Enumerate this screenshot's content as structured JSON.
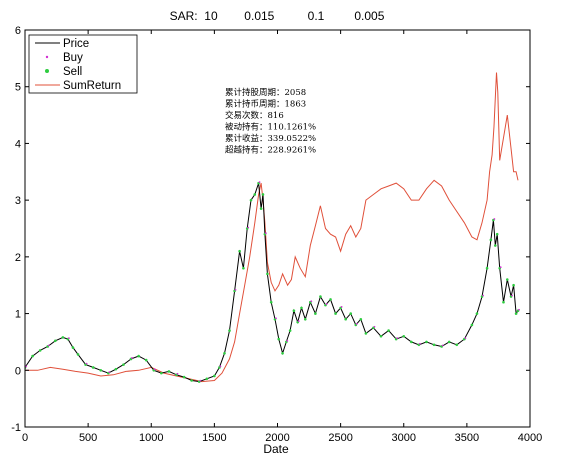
{
  "chart_data": {
    "type": "line",
    "title": "SAR:  10        0.015          0.1         0.005",
    "xlabel": "Date",
    "ylabel": "",
    "xlim": [
      0,
      4000
    ],
    "ylim": [
      -1,
      6
    ],
    "x_ticks": [
      0,
      500,
      1000,
      1500,
      2000,
      2500,
      3000,
      3500,
      4000
    ],
    "y_ticks": [
      -1,
      0,
      1,
      2,
      3,
      4,
      5,
      6
    ],
    "grid": false,
    "legend_position": "top-left",
    "legend": [
      "Price",
      "Buy",
      "Sell",
      "SumReturn"
    ],
    "colors": {
      "price": "#000000",
      "buy": "#d22fd2",
      "sell": "#2ecc40",
      "sumreturn": "#e0503a"
    },
    "stats": [
      "累计持股周期：2058",
      "累计持币周期：1863",
      "交易次数：816",
      "被动持有：110.1261%",
      "累计收益：339.0522%",
      "超越持有：228.9261%"
    ],
    "series": [
      {
        "name": "Price",
        "x": [
          0,
          60,
          120,
          180,
          240,
          300,
          340,
          380,
          420,
          480,
          540,
          600,
          660,
          720,
          780,
          840,
          900,
          960,
          1020,
          1080,
          1140,
          1200,
          1260,
          1320,
          1380,
          1440,
          1500,
          1540,
          1580,
          1620,
          1660,
          1700,
          1730,
          1760,
          1790,
          1820,
          1850,
          1870,
          1885,
          1900,
          1920,
          1950,
          1980,
          2010,
          2040,
          2070,
          2100,
          2130,
          2160,
          2190,
          2220,
          2260,
          2300,
          2340,
          2380,
          2420,
          2460,
          2500,
          2540,
          2580,
          2620,
          2660,
          2700,
          2760,
          2820,
          2880,
          2940,
          3000,
          3060,
          3120,
          3180,
          3240,
          3300,
          3360,
          3420,
          3480,
          3540,
          3580,
          3620,
          3660,
          3690,
          3710,
          3725,
          3740,
          3760,
          3790,
          3820,
          3850,
          3870,
          3890,
          3905
        ],
        "y": [
          0.05,
          0.25,
          0.35,
          0.42,
          0.52,
          0.58,
          0.55,
          0.4,
          0.28,
          0.1,
          0.05,
          0.0,
          -0.05,
          0.02,
          0.1,
          0.2,
          0.25,
          0.18,
          0.0,
          -0.05,
          -0.02,
          -0.08,
          -0.12,
          -0.18,
          -0.2,
          -0.15,
          -0.1,
          0.05,
          0.3,
          0.7,
          1.4,
          2.1,
          1.8,
          2.5,
          3.0,
          3.1,
          3.3,
          2.85,
          3.1,
          2.4,
          1.7,
          1.2,
          0.9,
          0.55,
          0.3,
          0.5,
          0.7,
          1.05,
          0.85,
          1.1,
          0.9,
          1.2,
          1.0,
          1.3,
          1.15,
          1.25,
          1.0,
          1.1,
          0.9,
          1.0,
          0.8,
          0.9,
          0.65,
          0.75,
          0.6,
          0.7,
          0.55,
          0.6,
          0.5,
          0.45,
          0.5,
          0.45,
          0.42,
          0.5,
          0.45,
          0.55,
          0.8,
          1.0,
          1.3,
          1.8,
          2.3,
          2.65,
          2.2,
          2.4,
          1.8,
          1.2,
          1.6,
          1.3,
          1.5,
          1.0,
          1.05
        ]
      },
      {
        "name": "SumReturn",
        "x": [
          0,
          100,
          200,
          300,
          400,
          500,
          600,
          700,
          800,
          900,
          1000,
          1100,
          1200,
          1300,
          1400,
          1500,
          1560,
          1620,
          1660,
          1700,
          1740,
          1780,
          1820,
          1850,
          1870,
          1885,
          1900,
          1920,
          1950,
          1980,
          2010,
          2040,
          2080,
          2110,
          2140,
          2180,
          2220,
          2260,
          2300,
          2340,
          2380,
          2420,
          2460,
          2500,
          2540,
          2580,
          2620,
          2660,
          2700,
          2760,
          2820,
          2880,
          2940,
          3000,
          3060,
          3120,
          3180,
          3240,
          3300,
          3360,
          3420,
          3480,
          3540,
          3580,
          3620,
          3660,
          3680,
          3700,
          3715,
          3725,
          3735,
          3745,
          3760,
          3790,
          3820,
          3850,
          3870,
          3890,
          3905
        ],
        "y": [
          0.0,
          0.0,
          0.05,
          0.02,
          -0.02,
          -0.05,
          -0.1,
          -0.08,
          -0.02,
          0.0,
          0.05,
          -0.05,
          -0.1,
          -0.15,
          -0.2,
          -0.18,
          -0.05,
          0.2,
          0.5,
          1.0,
          1.5,
          2.0,
          2.6,
          3.1,
          3.3,
          3.0,
          2.6,
          1.9,
          1.55,
          1.4,
          1.5,
          1.7,
          1.5,
          1.6,
          2.0,
          1.8,
          1.65,
          2.2,
          2.55,
          2.9,
          2.5,
          2.4,
          2.35,
          2.1,
          2.4,
          2.55,
          2.35,
          2.5,
          3.0,
          3.1,
          3.2,
          3.25,
          3.3,
          3.2,
          3.0,
          3.0,
          3.2,
          3.35,
          3.25,
          3.0,
          2.8,
          2.6,
          2.35,
          2.3,
          2.6,
          3.0,
          3.5,
          3.8,
          4.3,
          4.8,
          5.25,
          4.9,
          3.7,
          4.1,
          4.5,
          3.9,
          3.5,
          3.5,
          3.35
        ]
      }
    ]
  }
}
